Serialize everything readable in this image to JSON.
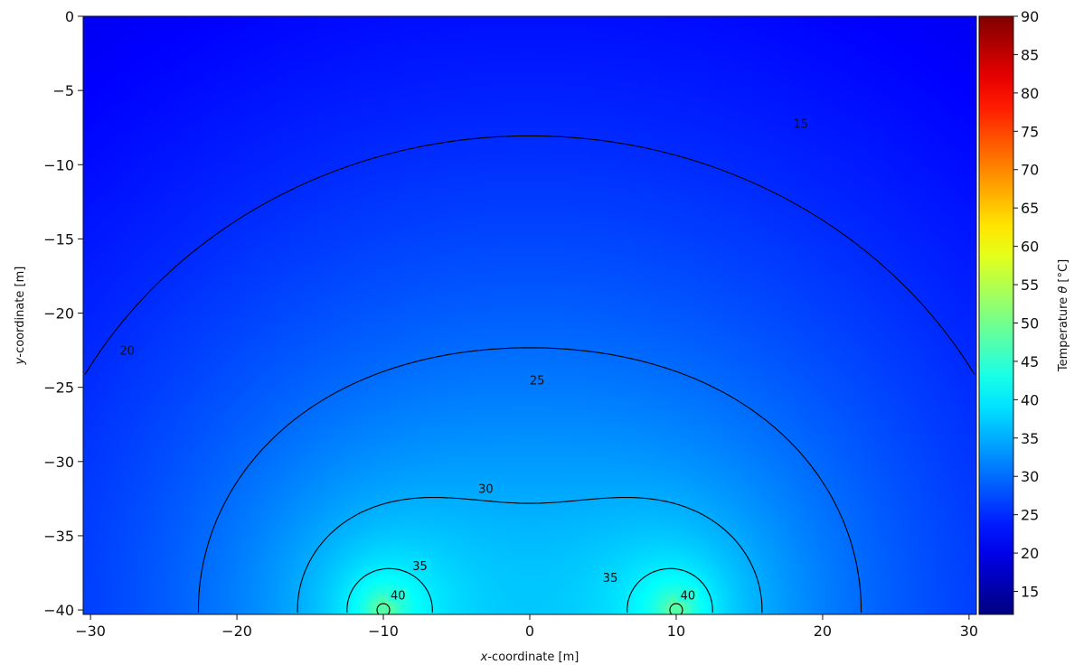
{
  "chart_data": {
    "type": "heatmap",
    "title": "",
    "xlabel_var": "x",
    "xlabel_rest": "-coordinate [m]",
    "ylabel_var": "y",
    "ylabel_rest": "-coordinate [m]",
    "xlim": [
      -30.5,
      30.5
    ],
    "ylim": [
      -40.3,
      0
    ],
    "x_ticks": [
      -30,
      -20,
      -10,
      0,
      10,
      20,
      30
    ],
    "x_tick_labels": [
      "−30",
      "−20",
      "−10",
      "0",
      "10",
      "20",
      "30"
    ],
    "y_ticks": [
      0,
      -5,
      -10,
      -15,
      -20,
      -25,
      -30,
      -35,
      -40
    ],
    "y_tick_labels": [
      "0",
      "−5",
      "−10",
      "−15",
      "−20",
      "−25",
      "−30",
      "−35",
      "−40"
    ],
    "colorbar": {
      "label_prefix": "Temperature ",
      "label_symbol": "θ",
      "label_suffix": " [°C]",
      "colormap": "jet",
      "range": [
        12,
        90
      ],
      "ticks": [
        15,
        20,
        25,
        30,
        35,
        40,
        45,
        50,
        55,
        60,
        65,
        70,
        75,
        80,
        85,
        90
      ]
    },
    "sources": [
      {
        "x": -10,
        "y": -40
      },
      {
        "x": 10,
        "y": -40
      }
    ],
    "contours": [
      {
        "level": 15,
        "label": "15",
        "label_x": 18.5,
        "label_y": -7.2
      },
      {
        "level": 20,
        "label": "20",
        "label_x": -27.5,
        "label_y": -22.5
      },
      {
        "level": 25,
        "label": "25",
        "label_x": 0.5,
        "label_y": -24.5
      },
      {
        "level": 30,
        "label": "30",
        "label_x": -3.0,
        "label_y": -31.8
      },
      {
        "level": 35,
        "label": "35",
        "label_x": -7.5,
        "label_y": -37.0
      },
      {
        "level": 35,
        "label": "35",
        "label_x": 5.5,
        "label_y": -37.8
      },
      {
        "level": 40,
        "label": "40",
        "label_x": -9.0,
        "label_y": -39.0
      },
      {
        "level": 40,
        "label": "40",
        "label_x": 10.8,
        "label_y": -39.0
      }
    ]
  }
}
